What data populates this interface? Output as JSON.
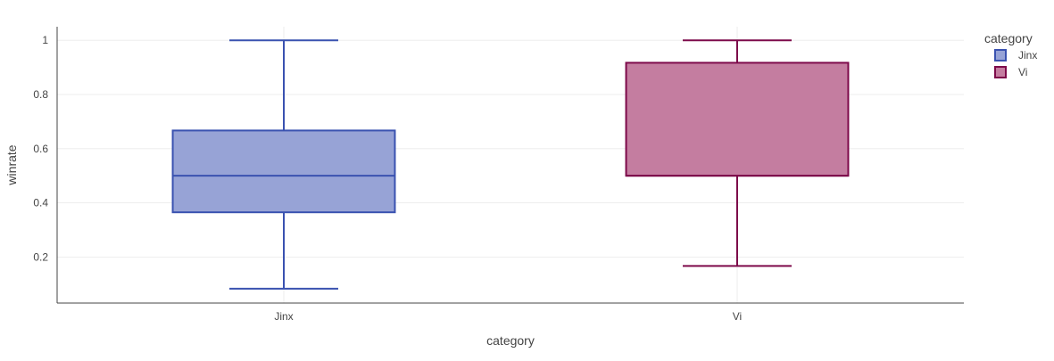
{
  "chart_data": {
    "type": "box",
    "xlabel": "category",
    "ylabel": "winrate",
    "categories": [
      "Jinx",
      "Vi"
    ],
    "ylim": [
      0.03,
      1.05
    ],
    "yticks": [
      0.2,
      0.4,
      0.6,
      0.8,
      1
    ],
    "ytick_labels": [
      "0.2",
      "0.4",
      "0.6",
      "0.8",
      "1"
    ],
    "grid": true,
    "legend": {
      "title": "category",
      "placement": "top-right"
    },
    "series": [
      {
        "name": "Jinx",
        "min": 0.083,
        "q1": 0.365,
        "median": 0.5,
        "q3": 0.667,
        "max": 1.0,
        "fill": "#97a3d6",
        "stroke": "#3a52b0"
      },
      {
        "name": "Vi",
        "min": 0.167,
        "q1": 0.5,
        "median": 0.5,
        "q3": 0.917,
        "max": 1.0,
        "fill": "#c47da0",
        "stroke": "#7d0a4a"
      }
    ]
  }
}
